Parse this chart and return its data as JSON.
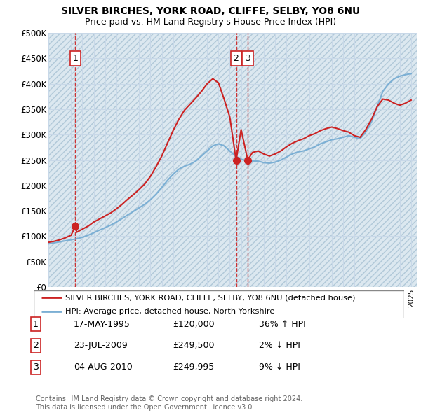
{
  "title": "SILVER BIRCHES, YORK ROAD, CLIFFE, SELBY, YO8 6NU",
  "subtitle": "Price paid vs. HM Land Registry's House Price Index (HPI)",
  "ylim": [
    0,
    500000
  ],
  "yticks": [
    0,
    50000,
    100000,
    150000,
    200000,
    250000,
    300000,
    350000,
    400000,
    450000,
    500000
  ],
  "ytick_labels": [
    "£0",
    "£50K",
    "£100K",
    "£150K",
    "£200K",
    "£250K",
    "£300K",
    "£350K",
    "£400K",
    "£450K",
    "£500K"
  ],
  "hpi_color": "#7bafd4",
  "sale_color": "#cc2222",
  "grid_color": "#c8d8e8",
  "bg_color": "#dce8f0",
  "xmin": 1993,
  "xmax": 2025.5,
  "transactions": [
    {
      "date_year": 1995.38,
      "price": 120000,
      "label": "1"
    },
    {
      "date_year": 2009.56,
      "price": 249500,
      "label": "2"
    },
    {
      "date_year": 2010.59,
      "price": 249995,
      "label": "3"
    }
  ],
  "legend_entries": [
    "SILVER BIRCHES, YORK ROAD, CLIFFE, SELBY, YO8 6NU (detached house)",
    "HPI: Average price, detached house, North Yorkshire"
  ],
  "table_rows": [
    {
      "num": "1",
      "date": "17-MAY-1995",
      "price": "£120,000",
      "hpi": "36% ↑ HPI"
    },
    {
      "num": "2",
      "date": "23-JUL-2009",
      "price": "£249,500",
      "hpi": "2% ↓ HPI"
    },
    {
      "num": "3",
      "date": "04-AUG-2010",
      "price": "£249,995",
      "hpi": "9% ↓ HPI"
    }
  ],
  "footnote": "Contains HM Land Registry data © Crown copyright and database right 2024.\nThis data is licensed under the Open Government Licence v3.0.",
  "hpi_x": [
    1993.0,
    1993.5,
    1994.0,
    1994.5,
    1995.0,
    1995.5,
    1996.0,
    1996.5,
    1997.0,
    1997.5,
    1998.0,
    1998.5,
    1999.0,
    1999.5,
    2000.0,
    2000.5,
    2001.0,
    2001.5,
    2002.0,
    2002.5,
    2003.0,
    2003.5,
    2004.0,
    2004.5,
    2005.0,
    2005.5,
    2006.0,
    2006.5,
    2007.0,
    2007.5,
    2008.0,
    2008.5,
    2009.0,
    2009.5,
    2010.0,
    2010.5,
    2011.0,
    2011.5,
    2012.0,
    2012.5,
    2013.0,
    2013.5,
    2014.0,
    2014.5,
    2015.0,
    2015.5,
    2016.0,
    2016.5,
    2017.0,
    2017.5,
    2018.0,
    2018.5,
    2019.0,
    2019.5,
    2020.0,
    2020.5,
    2021.0,
    2021.5,
    2022.0,
    2022.5,
    2023.0,
    2023.5,
    2024.0,
    2024.5,
    2025.0
  ],
  "hpi_y": [
    85000,
    87000,
    89000,
    91000,
    93000,
    95000,
    98000,
    102000,
    107000,
    112000,
    117000,
    122000,
    128000,
    135000,
    142000,
    149000,
    156000,
    163000,
    172000,
    183000,
    196000,
    210000,
    222000,
    232000,
    238000,
    242000,
    248000,
    258000,
    268000,
    278000,
    282000,
    278000,
    268000,
    258000,
    252000,
    248000,
    248000,
    248000,
    245000,
    244000,
    246000,
    250000,
    256000,
    262000,
    266000,
    268000,
    272000,
    276000,
    282000,
    286000,
    290000,
    292000,
    295000,
    298000,
    295000,
    292000,
    305000,
    325000,
    355000,
    385000,
    400000,
    410000,
    415000,
    418000,
    420000
  ],
  "sale_x": [
    1993.0,
    1993.5,
    1994.0,
    1994.5,
    1995.0,
    1995.38,
    1995.5,
    1996.0,
    1996.5,
    1997.0,
    1997.5,
    1998.0,
    1998.5,
    1999.0,
    1999.5,
    2000.0,
    2000.5,
    2001.0,
    2001.5,
    2002.0,
    2002.5,
    2003.0,
    2003.5,
    2004.0,
    2004.5,
    2005.0,
    2005.5,
    2006.0,
    2006.5,
    2007.0,
    2007.5,
    2008.0,
    2008.5,
    2009.0,
    2009.56,
    2010.0,
    2010.59,
    2011.0,
    2011.5,
    2012.0,
    2012.5,
    2013.0,
    2013.5,
    2014.0,
    2014.5,
    2015.0,
    2015.5,
    2016.0,
    2016.5,
    2017.0,
    2017.5,
    2018.0,
    2018.5,
    2019.0,
    2019.5,
    2020.0,
    2020.5,
    2021.0,
    2021.5,
    2022.0,
    2022.5,
    2023.0,
    2023.5,
    2024.0,
    2024.5,
    2025.0
  ],
  "sale_y": [
    88000,
    90000,
    93000,
    97000,
    102000,
    120000,
    108000,
    114000,
    120000,
    128000,
    134000,
    140000,
    146000,
    154000,
    163000,
    173000,
    182000,
    192000,
    203000,
    218000,
    237000,
    258000,
    283000,
    308000,
    330000,
    348000,
    360000,
    372000,
    385000,
    400000,
    410000,
    402000,
    370000,
    335000,
    249500,
    310000,
    249995,
    265000,
    268000,
    262000,
    258000,
    262000,
    268000,
    276000,
    283000,
    288000,
    292000,
    298000,
    302000,
    308000,
    312000,
    315000,
    312000,
    308000,
    305000,
    298000,
    295000,
    310000,
    330000,
    355000,
    370000,
    368000,
    362000,
    358000,
    362000,
    368000
  ]
}
